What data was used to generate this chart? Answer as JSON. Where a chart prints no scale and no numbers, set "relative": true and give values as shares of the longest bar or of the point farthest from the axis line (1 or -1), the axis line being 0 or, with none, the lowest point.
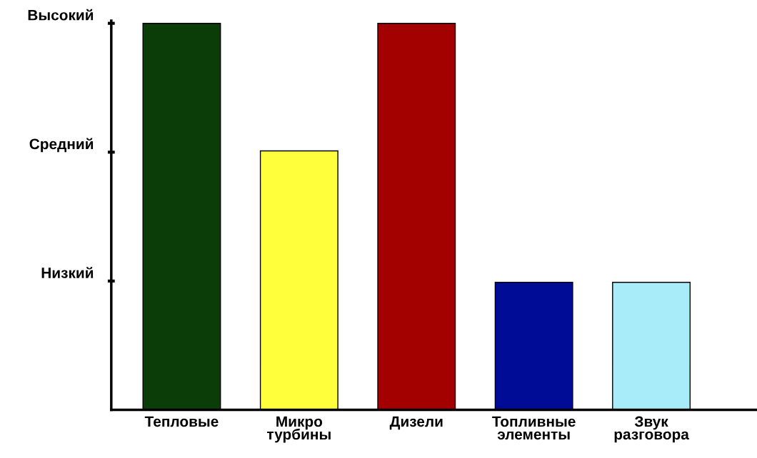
{
  "chart_data": {
    "type": "bar",
    "categories": [
      "Тепловые",
      "Микро\nтурбины",
      "Дизели",
      "Топливные\nэлементы",
      "Звук\nразговора"
    ],
    "values": [
      1,
      0.67,
      1,
      0.33,
      0.33
    ],
    "colors": [
      "#0b3d08",
      "#ffff3c",
      "#a30000",
      "#000c96",
      "#a8ecfa"
    ],
    "relative": true,
    "annotations": [
      "Высокий",
      "Средний",
      "Низкий"
    ]
  }
}
